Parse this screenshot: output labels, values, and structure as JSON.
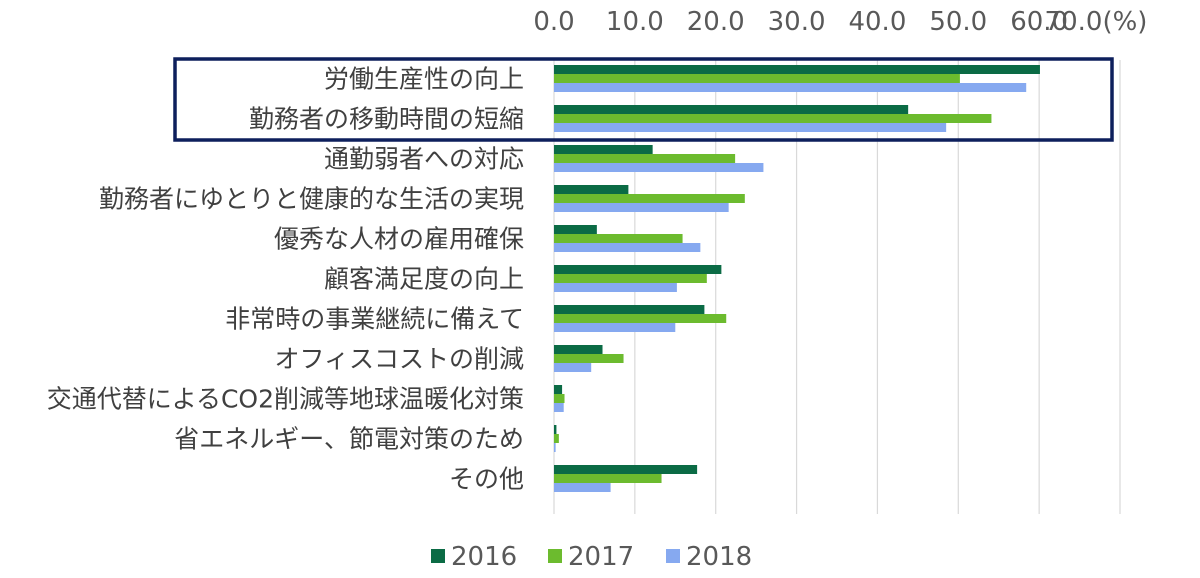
{
  "chart_data": {
    "type": "bar",
    "orientation": "horizontal",
    "unit": "(%)",
    "categories": [
      "労働生産性の向上",
      "勤務者の移動時間の短縮",
      "通勤弱者への対応",
      "勤務者にゆとりと健康的な生活の実現",
      "優秀な人材の雇用確保",
      "顧客満足度の向上",
      "非常時の事業継続に備えて",
      "オフィスコストの削減",
      "交通代替によるCO2削減等地球温暖化対策",
      "省エネルギー、節電対策のため",
      "その他"
    ],
    "series": [
      {
        "name": "2016",
        "color": "#0b6b45",
        "values": [
          60.1,
          43.8,
          12.2,
          9.2,
          5.3,
          20.7,
          18.6,
          6.0,
          1.0,
          0.3,
          17.7
        ]
      },
      {
        "name": "2017",
        "color": "#6cbb2e",
        "values": [
          50.2,
          54.1,
          22.4,
          23.6,
          15.9,
          18.9,
          21.3,
          8.6,
          1.3,
          0.6,
          13.3
        ]
      },
      {
        "name": "2018",
        "color": "#86a9f0",
        "values": [
          58.4,
          48.5,
          25.9,
          21.6,
          18.1,
          15.2,
          15.0,
          4.6,
          1.2,
          0.2,
          7.0
        ]
      }
    ],
    "xlim": [
      0,
      70
    ],
    "ticks": [
      "0.0",
      "10.0",
      "20.0",
      "30.0",
      "40.0",
      "50.0",
      "60.0",
      "70.0(%)"
    ],
    "grid": true,
    "legend": "bottom",
    "highlight_categories": [
      "労働生産性の向上",
      "勤務者の移動時間の短縮"
    ],
    "highlight_color": "#0d1f5c"
  }
}
